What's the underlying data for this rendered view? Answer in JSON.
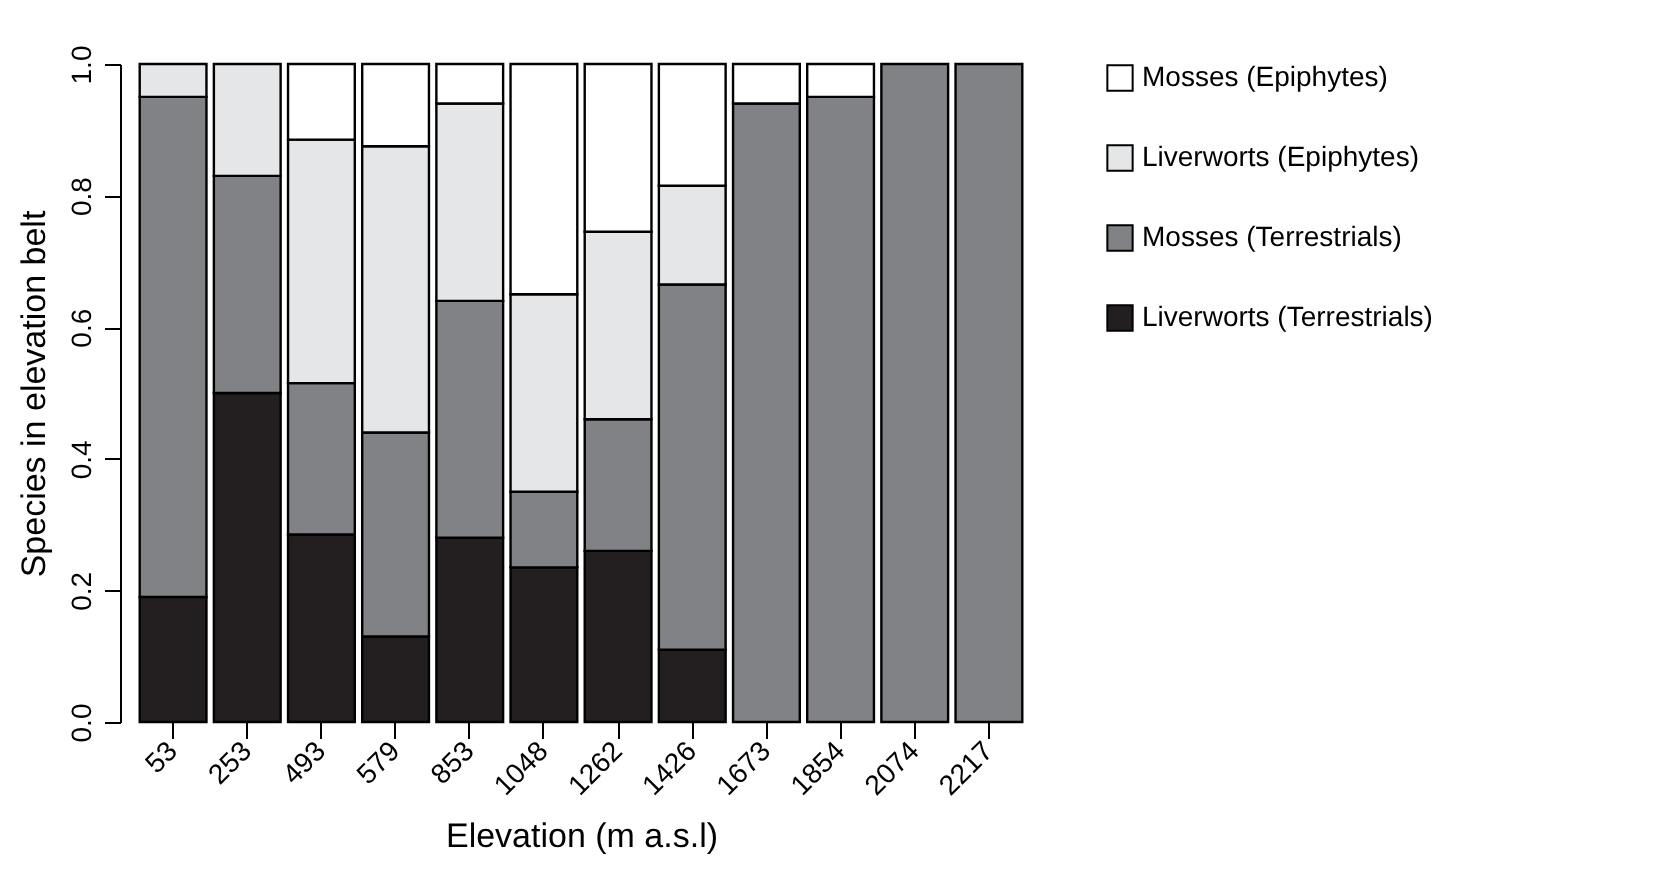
{
  "chart_data": {
    "type": "bar",
    "stacked": true,
    "xlabel": "Elevation (m a.s.l)",
    "ylabel": "Species in elevation belt",
    "categories": [
      "53",
      "253",
      "493",
      "579",
      "853",
      "1048",
      "1262",
      "1426",
      "1673",
      "1854",
      "2074",
      "2217"
    ],
    "series": [
      {
        "name": "Liverworts (Terrestrials)",
        "color": "#231f20",
        "values": [
          0.19,
          0.5,
          0.285,
          0.13,
          0.28,
          0.235,
          0.26,
          0.11,
          null,
          null,
          null,
          null
        ]
      },
      {
        "name": "Mosses (Terrestrials)",
        "color": "#818285",
        "values": [
          0.76,
          0.33,
          0.23,
          0.31,
          0.36,
          0.115,
          0.2,
          0.555,
          0.94,
          0.95,
          1,
          1
        ]
      },
      {
        "name": "Liverworts (Epiphytes)",
        "color": "#e5e6e7",
        "values": [
          0.05,
          0.17,
          0.37,
          0.435,
          0.3,
          0.3,
          0.285,
          0.15,
          null,
          null,
          null,
          null
        ]
      },
      {
        "name": "Mosses (Epiphytes)",
        "color": "#ffffff",
        "values": [
          null,
          null,
          0.115,
          0.125,
          0.06,
          0.35,
          0.255,
          0.185,
          0.06,
          0.05,
          null,
          null
        ]
      }
    ],
    "ylim": [
      0,
      1
    ],
    "yticks": [
      {
        "value": 0,
        "label": "0.0"
      },
      {
        "value": 0.2,
        "label": "0.2"
      },
      {
        "value": 0.4,
        "label": "0.4"
      },
      {
        "value": 0.6,
        "label": "0.6"
      },
      {
        "value": 0.8,
        "label": "0.8"
      },
      {
        "value": 1,
        "label": "1.0"
      }
    ],
    "grid": false,
    "legend": "right"
  }
}
